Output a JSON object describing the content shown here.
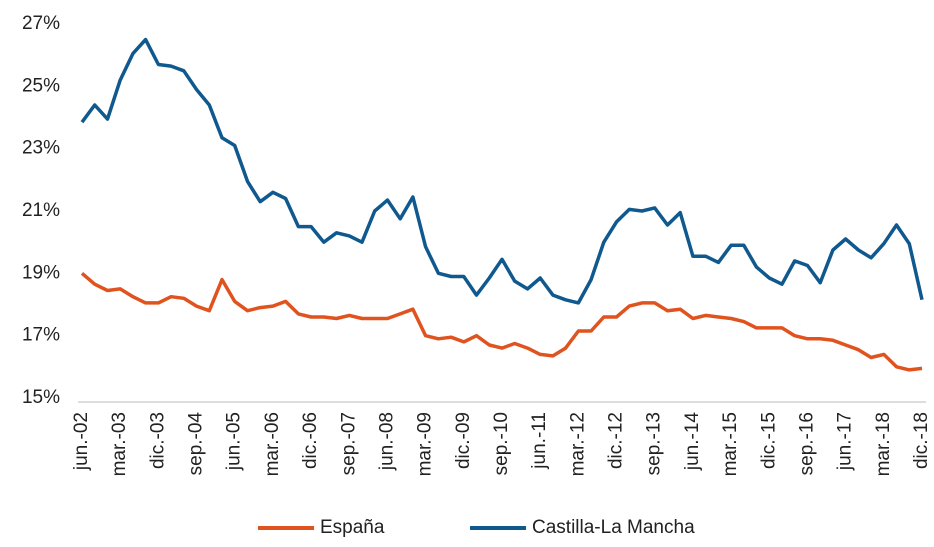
{
  "chart_data": {
    "type": "line",
    "categories": [
      "jun.-02",
      null,
      null,
      "mar.-03",
      null,
      null,
      "dic.-03",
      null,
      null,
      "sep.-04",
      null,
      null,
      "jun.-05",
      null,
      null,
      "mar.-06",
      null,
      null,
      "dic.-06",
      null,
      null,
      "sep.-07",
      null,
      null,
      "jun.-08",
      null,
      null,
      "mar.-09",
      null,
      null,
      "dic.-09",
      null,
      null,
      "sep.-10",
      null,
      null,
      "jun.-11",
      null,
      null,
      "mar.-12",
      null,
      null,
      "dic.-12",
      null,
      null,
      "sep.-13",
      null,
      null,
      "jun.-14",
      null,
      null,
      "mar.-15",
      null,
      null,
      "dic.-15",
      null,
      null,
      "sep.-16",
      null,
      null,
      "jun.-17",
      null,
      null,
      "mar.-18",
      null,
      null,
      "dic.-18"
    ],
    "series": [
      {
        "name": "España",
        "color": "#e0531f",
        "values": [
          19.0,
          18.65,
          18.45,
          18.5,
          18.25,
          18.05,
          18.05,
          18.25,
          18.2,
          17.95,
          17.8,
          18.8,
          18.1,
          17.8,
          17.9,
          17.95,
          18.1,
          17.7,
          17.6,
          17.6,
          17.55,
          17.65,
          17.55,
          17.55,
          17.55,
          17.7,
          17.85,
          17.0,
          16.9,
          16.95,
          16.8,
          17.0,
          16.7,
          16.6,
          16.75,
          16.6,
          16.4,
          16.35,
          16.6,
          17.15,
          17.15,
          17.6,
          17.6,
          17.95,
          18.05,
          18.05,
          17.8,
          17.85,
          17.55,
          17.65,
          17.6,
          17.55,
          17.45,
          17.25,
          17.25,
          17.25,
          17.0,
          16.9,
          16.9,
          16.85,
          16.7,
          16.55,
          16.3,
          16.4,
          16.0,
          15.9,
          15.95
        ]
      },
      {
        "name": "Castilla-La Mancha",
        "color": "#10598f",
        "values": [
          23.85,
          24.4,
          23.95,
          25.2,
          26.05,
          26.5,
          25.7,
          25.65,
          25.5,
          24.9,
          24.4,
          23.35,
          23.1,
          21.95,
          21.3,
          21.6,
          21.4,
          20.5,
          20.5,
          20.0,
          20.3,
          20.2,
          20.0,
          21.0,
          21.35,
          20.75,
          21.45,
          19.85,
          19.0,
          18.9,
          18.9,
          18.3,
          18.85,
          19.45,
          18.75,
          18.5,
          18.85,
          18.3,
          18.15,
          18.05,
          18.8,
          20.0,
          20.65,
          21.05,
          21.0,
          21.1,
          20.55,
          20.95,
          19.55,
          19.55,
          19.35,
          19.9,
          19.9,
          19.2,
          18.85,
          18.65,
          19.4,
          19.25,
          18.7,
          19.75,
          20.1,
          19.75,
          19.5,
          19.95,
          20.55,
          19.95,
          18.15
        ]
      }
    ],
    "ylim": [
      15,
      27
    ],
    "yticks": [
      {
        "value": 15,
        "label": "15%"
      },
      {
        "value": 17,
        "label": "17%"
      },
      {
        "value": 19,
        "label": "19%"
      },
      {
        "value": 21,
        "label": "21%"
      },
      {
        "value": 23,
        "label": "23%"
      },
      {
        "value": 25,
        "label": "25%"
      },
      {
        "value": 27,
        "label": "27%"
      }
    ],
    "grid": false,
    "legend": "bottom"
  }
}
